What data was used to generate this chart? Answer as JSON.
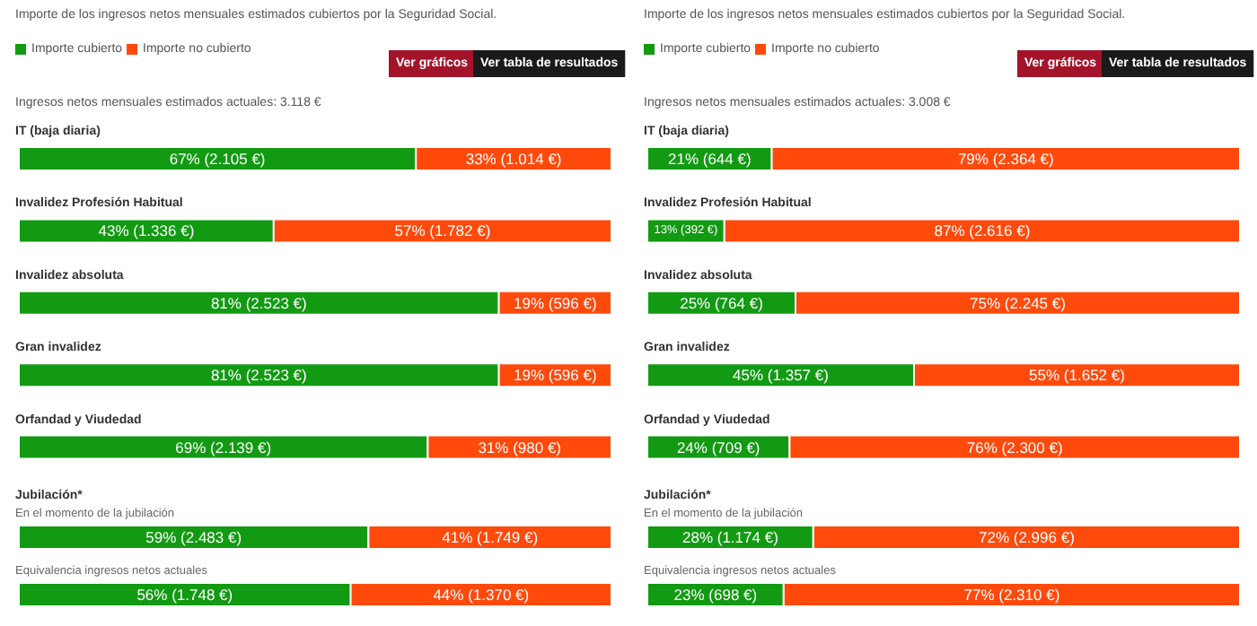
{
  "chart_data": [
    {
      "type": "bar",
      "orientation": "horizontal",
      "stacked": true,
      "title": "Importe de los ingresos netos mensuales estimados cubiertos por la Seguridad Social.",
      "subtitle": "Ingresos netos mensuales estimados actuales: 3.118 €",
      "legend": "top left",
      "tick_labels": false,
      "xlim": [
        0,
        100
      ],
      "categories": [
        "IT (baja diaria)",
        "Invalidez Profesión Habitual",
        "Invalidez absoluta",
        "Gran invalidez",
        "Orfandad y Viudedad",
        "En el momento de la jubilación",
        "Equivalencia ingresos netos actuales"
      ],
      "series": [
        {
          "name": "Importe cubierto",
          "color": "#139a13",
          "values": [
            67,
            43,
            81,
            81,
            69,
            59,
            56
          ],
          "value_labels": [
            "67% (2.105 €)",
            "43% (1.336 €)",
            "81% (2.523 €)",
            "81% (2.523 €)",
            "69% (2.139 €)",
            "59% (2.483 €)",
            "56% (1.748 €)"
          ]
        },
        {
          "name": "Importe no cubierto",
          "color": "#ff4a0c",
          "values": [
            33,
            57,
            19,
            19,
            31,
            41,
            44
          ],
          "value_labels": [
            "33% (1.014 €)",
            "57% (1.782 €)",
            "19% (596 €)",
            "19% (596 €)",
            "31% (980 €)",
            "41% (1.749 €)",
            "44% (1.370 €)"
          ]
        }
      ],
      "annotations": [
        "Ver gráficos",
        "Ver tabla de resultados",
        "Jubilación*"
      ]
    },
    {
      "type": "bar",
      "orientation": "horizontal",
      "stacked": true,
      "title": "Importe de los ingresos netos mensuales estimados cubiertos por la Seguridad Social.",
      "subtitle": "Ingresos netos mensuales estimados actuales: 3.008 €",
      "legend": "top left",
      "tick_labels": false,
      "xlim": [
        0,
        100
      ],
      "categories": [
        "IT (baja diaria)",
        "Invalidez Profesión Habitual",
        "Invalidez absoluta",
        "Gran invalidez",
        "Orfandad y Viudedad",
        "En el momento de la jubilación",
        "Equivalencia ingresos netos actuales"
      ],
      "series": [
        {
          "name": "Importe cubierto",
          "color": "#139a13",
          "values": [
            21,
            13,
            25,
            45,
            24,
            28,
            23
          ],
          "value_labels": [
            "21% (644 €)",
            "13% (392 €)",
            "25% (764 €)",
            "45% (1.357 €)",
            "24% (709 €)",
            "28% (1.174 €)",
            "23% (698 €)"
          ]
        },
        {
          "name": "Importe no cubierto",
          "color": "#ff4a0c",
          "values": [
            79,
            87,
            75,
            55,
            76,
            72,
            77
          ],
          "value_labels": [
            "79% (2.364 €)",
            "87% (2.616 €)",
            "75% (2.245 €)",
            "55% (1.652 €)",
            "76% (2.300 €)",
            "72% (2.996 €)",
            "77% (2.310 €)"
          ]
        }
      ],
      "annotations": [
        "Ver gráficos",
        "Ver tabla de resultados",
        "Jubilación*"
      ]
    }
  ]
}
